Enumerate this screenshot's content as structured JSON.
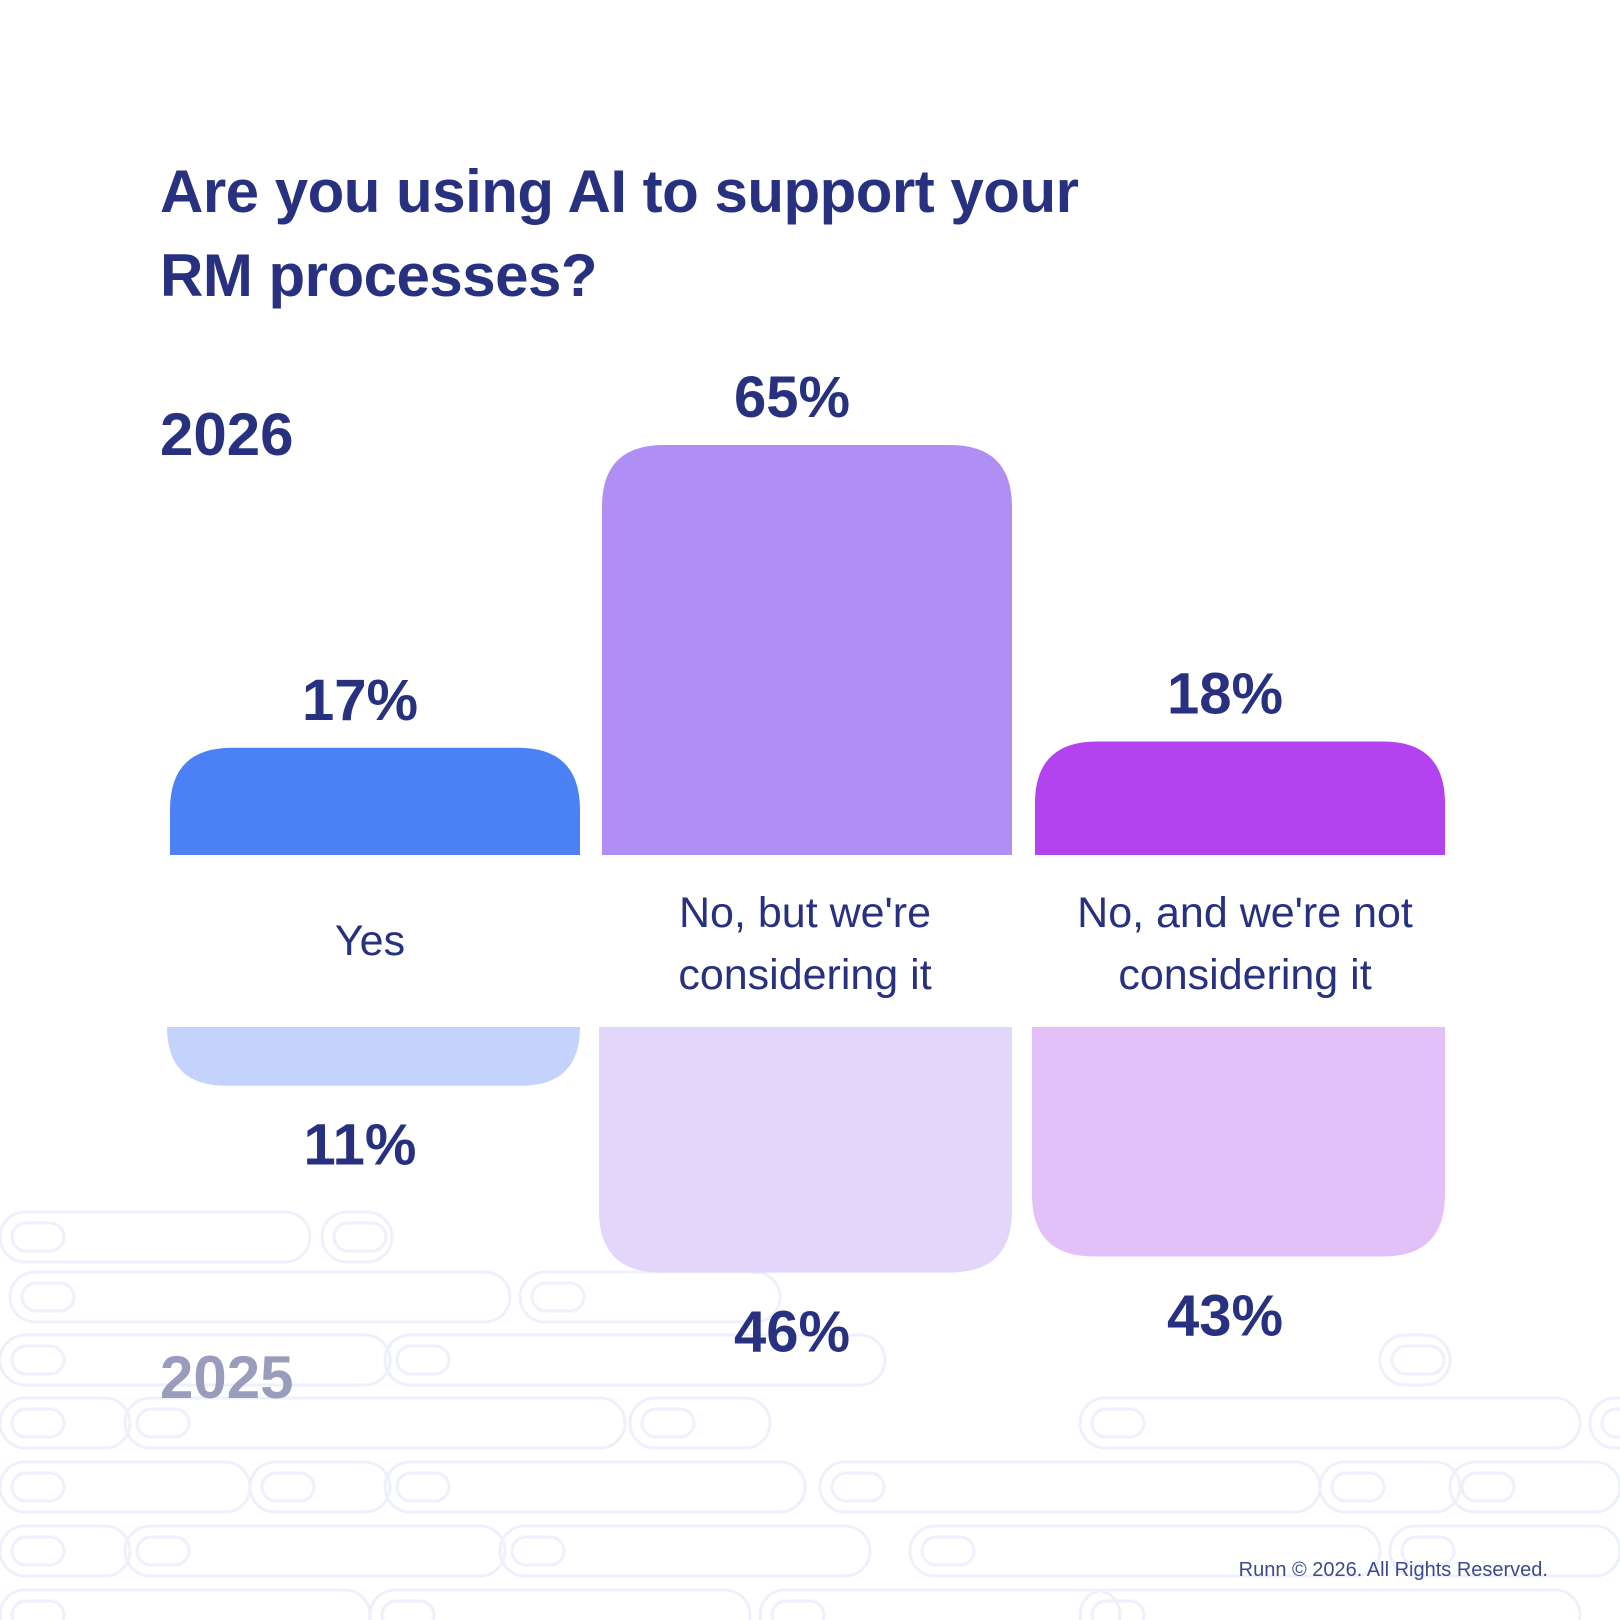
{
  "title": "Are you using AI to support your RM processes?",
  "year_top": "2026",
  "year_bottom": "2025",
  "footer": "Runn © 2026. All Rights Reserved.",
  "chart_data": {
    "type": "bar",
    "title": "Are you using AI to support your RM processes?",
    "categories": [
      "Yes",
      "No, but we're considering it",
      "No, and we're not considering it"
    ],
    "series": [
      {
        "name": "2026",
        "values": [
          17,
          65,
          18
        ],
        "labels": [
          "17%",
          "65%",
          "18%"
        ],
        "colors": [
          "#4c80f5",
          "#af8ff4",
          "#b243ee"
        ]
      },
      {
        "name": "2025",
        "values": [
          11,
          46,
          43
        ],
        "labels": [
          "11%",
          "46%",
          "43%"
        ],
        "colors": [
          "#c3d3fc",
          "#e2d7fa",
          "#e4c0f8"
        ]
      }
    ],
    "ylim": [
      0,
      65
    ]
  }
}
